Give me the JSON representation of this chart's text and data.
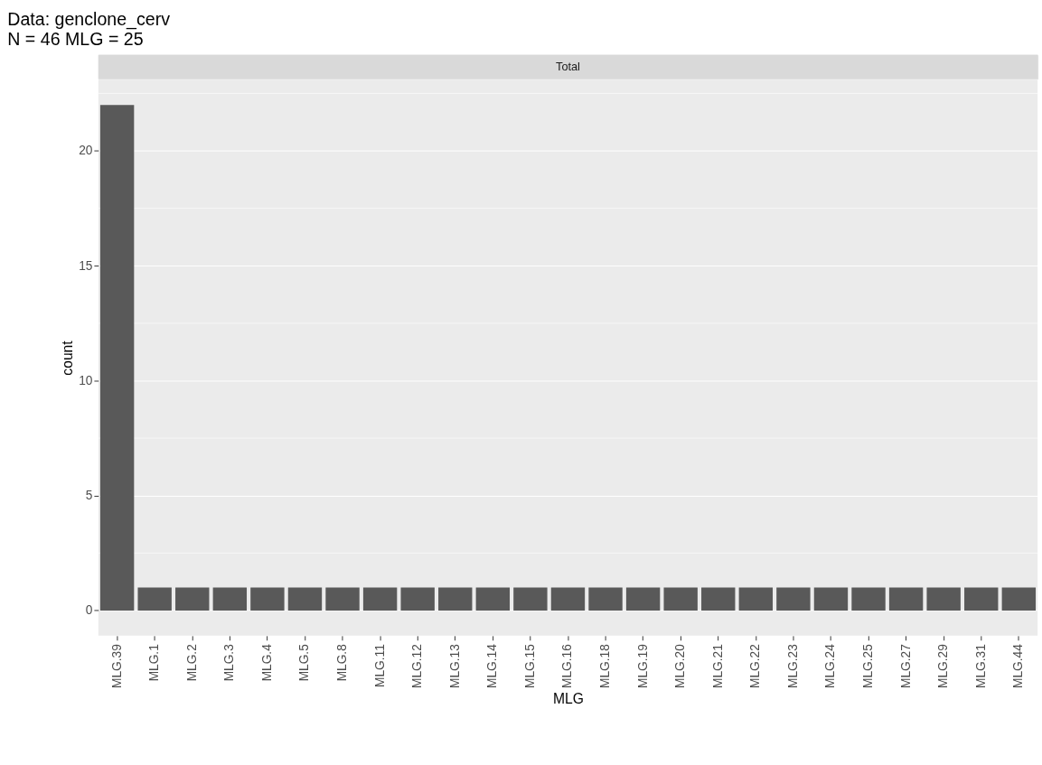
{
  "chart_data": {
    "type": "bar",
    "title": "Data: genclone_cerv",
    "subtitle": "N = 46 MLG = 25",
    "xlabel": "MLG",
    "ylabel": "count",
    "annotations": [
      "Total"
    ],
    "categories": [
      "MLG.39",
      "MLG.1",
      "MLG.2",
      "MLG.3",
      "MLG.4",
      "MLG.5",
      "MLG.8",
      "MLG.11",
      "MLG.12",
      "MLG.13",
      "MLG.14",
      "MLG.15",
      "MLG.16",
      "MLG.18",
      "MLG.19",
      "MLG.20",
      "MLG.21",
      "MLG.22",
      "MLG.23",
      "MLG.24",
      "MLG.25",
      "MLG.27",
      "MLG.29",
      "MLG.31",
      "MLG.44"
    ],
    "values": [
      22,
      1,
      1,
      1,
      1,
      1,
      1,
      1,
      1,
      1,
      1,
      1,
      1,
      1,
      1,
      1,
      1,
      1,
      1,
      1,
      1,
      1,
      1,
      1,
      1
    ],
    "color": "#595959",
    "ylim": [
      -1.1,
      23.1
    ],
    "yticks": [
      0,
      {
        "value": 2.5,
        "label": null
      },
      5,
      {
        "value": 7.5,
        "label": null
      },
      10,
      {
        "value": 12.5,
        "label": null
      },
      15,
      {
        "value": 17.5,
        "label": null
      },
      20,
      {
        "value": 22.5,
        "label": null
      }
    ],
    "grid": "y"
  }
}
